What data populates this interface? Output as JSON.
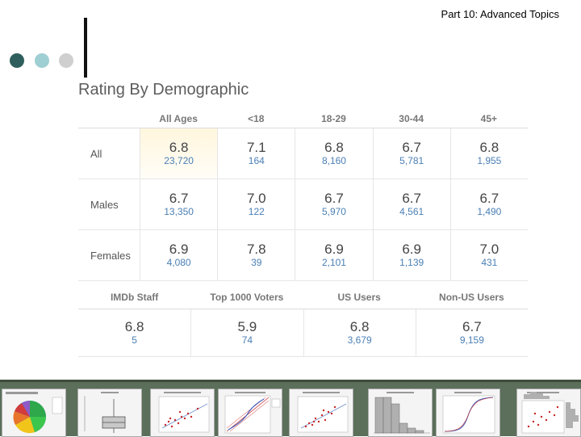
{
  "header": {
    "text": "Part 10: Advanced Topics"
  },
  "colors": {
    "dot1": "#2f5f5c",
    "dot2": "#9fcfd2",
    "dot3": "#cfcfcf",
    "vote_text": "#4a7fb5",
    "strip_bg": "#5b6f5a"
  },
  "panel": {
    "title": "Rating By Demographic"
  },
  "ratings_table": {
    "columns": [
      "All Ages",
      "<18",
      "18-29",
      "30-44",
      "45+"
    ],
    "rows": [
      {
        "label": "All",
        "cells": [
          {
            "rating": "6.8",
            "votes": "23,720"
          },
          {
            "rating": "7.1",
            "votes": "164"
          },
          {
            "rating": "6.8",
            "votes": "8,160"
          },
          {
            "rating": "6.7",
            "votes": "5,781"
          },
          {
            "rating": "6.8",
            "votes": "1,955"
          }
        ]
      },
      {
        "label": "Males",
        "cells": [
          {
            "rating": "6.7",
            "votes": "13,350"
          },
          {
            "rating": "7.0",
            "votes": "122"
          },
          {
            "rating": "6.7",
            "votes": "5,970"
          },
          {
            "rating": "6.7",
            "votes": "4,561"
          },
          {
            "rating": "6.7",
            "votes": "1,490"
          }
        ]
      },
      {
        "label": "Females",
        "cells": [
          {
            "rating": "6.9",
            "votes": "4,080"
          },
          {
            "rating": "7.8",
            "votes": "39"
          },
          {
            "rating": "6.9",
            "votes": "2,101"
          },
          {
            "rating": "6.9",
            "votes": "1,139"
          },
          {
            "rating": "7.0",
            "votes": "431"
          }
        ]
      }
    ]
  },
  "groups_table": {
    "columns": [
      "IMDb Staff",
      "Top 1000 Voters",
      "US Users",
      "Non-US Users"
    ],
    "cells": [
      {
        "rating": "6.8",
        "votes": "5"
      },
      {
        "rating": "5.9",
        "votes": "74"
      },
      {
        "rating": "6.8",
        "votes": "3,679"
      },
      {
        "rating": "6.7",
        "votes": "9,159"
      }
    ]
  },
  "thumbnails": [
    {
      "icon": "pie-chart-thumbnail"
    },
    {
      "icon": "box-plot-thumbnail"
    },
    {
      "icon": "scatter-plot-thumbnail"
    },
    {
      "icon": "probability-plot-thumbnail"
    },
    {
      "icon": "scatter-plot-thumbnail"
    },
    {
      "icon": "histogram-thumbnail"
    },
    {
      "icon": "cdf-curve-thumbnail"
    },
    {
      "icon": "scatter-histogram-thumbnail"
    }
  ]
}
